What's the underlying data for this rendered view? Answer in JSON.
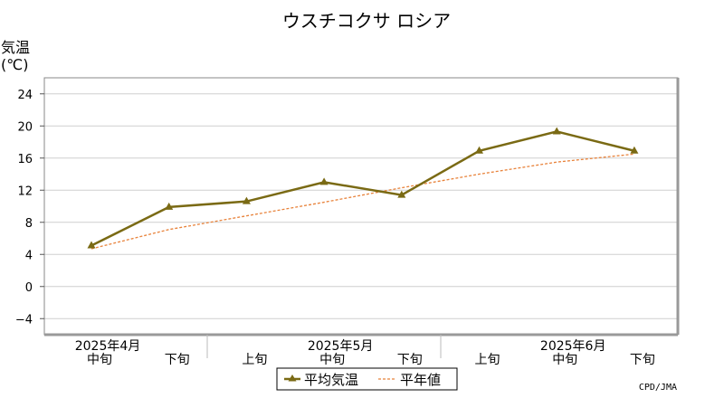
{
  "chart_data": {
    "type": "line",
    "title": "ウスチコクサ ロシア",
    "ylabel": "気温",
    "yunit": "(℃)",
    "ylim": [
      -6,
      26
    ],
    "yticks": [
      24,
      20,
      16,
      12,
      8,
      4,
      0,
      -4
    ],
    "ytick_labels": [
      "24",
      "20",
      "16",
      "12",
      "8",
      "4",
      "0",
      "−4"
    ],
    "grid": true,
    "categories": [
      "中旬",
      "下旬",
      "上旬",
      "中旬",
      "下旬",
      "上旬",
      "中旬",
      "下旬"
    ],
    "month_labels": [
      {
        "label": "2025年4月",
        "index": 0
      },
      {
        "label": "2025年5月",
        "index": 3
      },
      {
        "label": "2025年6月",
        "index": 6
      }
    ],
    "series": [
      {
        "name": "平均気温",
        "values": [
          5.1,
          9.9,
          10.6,
          13.0,
          11.4,
          16.9,
          19.3,
          16.9
        ],
        "color": "#7a6a14",
        "style": "solid-triangle-markers"
      },
      {
        "name": "平年値",
        "values": [
          4.7,
          7.1,
          8.8,
          10.5,
          12.3,
          14.0,
          15.5,
          16.5
        ],
        "color": "#e8823a",
        "style": "dotted"
      }
    ],
    "legend_position": "bottom-center",
    "credit": "CPD/JMA"
  }
}
